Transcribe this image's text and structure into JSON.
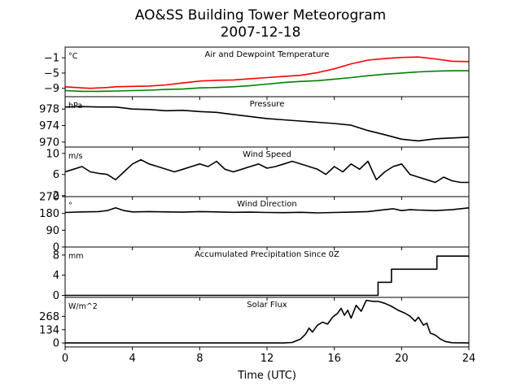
{
  "figure": {
    "title_line1": "AO&SS Building Tower Meteorogram",
    "title_line2": "2007-12-18",
    "xlabel": "Time (UTC)"
  },
  "chart_data": {
    "type": "line",
    "x_ticks": [
      0,
      4,
      8,
      12,
      16,
      20,
      24
    ],
    "x_range": [
      0,
      24
    ],
    "panels": [
      {
        "id": "temperature",
        "title": "Air and Dewpoint Temperature",
        "unit": "°C",
        "ylim": [
          -11.2,
          1.8
        ],
        "yticks": [
          -1,
          -5,
          -9
        ],
        "series": [
          {
            "color": "#ff0000",
            "x": [
              0,
              1,
              1.5,
              2,
              2.5,
              3,
              4,
              5,
              6,
              7,
              8,
              9,
              10,
              11,
              12,
              13,
              14,
              15,
              16,
              17,
              18,
              19,
              20,
              21,
              22,
              23,
              24
            ],
            "y": [
              -8.6,
              -8.9,
              -9.0,
              -8.9,
              -8.8,
              -8.6,
              -8.5,
              -8.4,
              -8.1,
              -7.6,
              -7.1,
              -6.9,
              -6.8,
              -6.5,
              -6.2,
              -5.9,
              -5.6,
              -4.9,
              -3.9,
              -2.6,
              -1.6,
              -1.2,
              -0.9,
              -0.8,
              -1.3,
              -1.9,
              -2.0
            ]
          },
          {
            "color": "#008000",
            "x": [
              0,
              1,
              2,
              3,
              4,
              5,
              6,
              7,
              8,
              9,
              10,
              11,
              12,
              13,
              14,
              15,
              16,
              17,
              18,
              19,
              20,
              21,
              22,
              23,
              24
            ],
            "y": [
              -9.6,
              -9.8,
              -9.8,
              -9.7,
              -9.6,
              -9.5,
              -9.3,
              -9.2,
              -8.9,
              -8.8,
              -8.6,
              -8.3,
              -7.9,
              -7.5,
              -7.2,
              -7.0,
              -6.6,
              -6.2,
              -5.7,
              -5.3,
              -5.0,
              -4.7,
              -4.5,
              -4.4,
              -4.4
            ]
          }
        ]
      },
      {
        "id": "pressure",
        "title": "Pressure",
        "unit": "hPa",
        "ylim": [
          968.8,
          981.0
        ],
        "yticks": [
          978,
          974,
          970
        ],
        "series": [
          {
            "color": "#000000",
            "x": [
              0,
              1,
              2,
              3,
              4,
              5,
              6,
              7,
              8,
              9,
              10,
              11,
              12,
              13,
              14,
              15,
              16,
              17,
              18,
              19,
              20,
              21,
              22,
              23,
              24
            ],
            "y": [
              978.5,
              978.6,
              978.5,
              978.5,
              978.0,
              977.9,
              977.6,
              977.7,
              977.4,
              977.2,
              976.7,
              976.2,
              975.7,
              975.4,
              975.1,
              974.8,
              974.5,
              974.1,
              972.8,
              971.8,
              970.7,
              970.3,
              970.8,
              971.0,
              971.2
            ]
          }
        ]
      },
      {
        "id": "wind_speed",
        "title": "Wind Speed",
        "unit": "m/s",
        "ylim": [
          1.8,
          11.2
        ],
        "yticks": [
          10,
          6,
          2
        ],
        "series": [
          {
            "color": "#000000",
            "x": [
              0,
              0.5,
              1,
              1.5,
              2,
              2.5,
              3,
              3.5,
              4,
              4.5,
              5,
              5.5,
              6,
              6.5,
              7,
              7.5,
              8,
              8.5,
              9,
              9.5,
              10,
              10.5,
              11,
              11.5,
              12,
              12.5,
              13,
              13.5,
              14,
              14.5,
              15,
              15.5,
              16,
              16.5,
              17,
              17.5,
              18,
              18.5,
              19,
              19.5,
              20,
              20.5,
              21,
              21.5,
              22,
              22.5,
              23,
              23.5,
              24
            ],
            "y": [
              6.5,
              7.0,
              7.5,
              6.5,
              6.2,
              6.0,
              5.0,
              6.5,
              8.0,
              8.8,
              8.0,
              7.5,
              7.0,
              6.5,
              7.0,
              7.5,
              8.0,
              7.5,
              8.5,
              7.0,
              6.5,
              7.0,
              7.5,
              8.0,
              7.2,
              7.5,
              8.0,
              8.5,
              8.0,
              7.5,
              7.0,
              6.0,
              7.5,
              6.5,
              8.0,
              7.0,
              8.5,
              5.0,
              6.5,
              7.5,
              8.0,
              6.0,
              5.5,
              5.0,
              4.5,
              5.5,
              4.8,
              4.5,
              4.5
            ]
          }
        ]
      },
      {
        "id": "wind_direction",
        "title": "Wind Direction",
        "unit": "°",
        "ylim": [
          0,
          270
        ],
        "yticks": [
          270,
          180,
          90,
          0
        ],
        "series": [
          {
            "color": "#000000",
            "x": [
              0,
              1,
              2,
              2.5,
              3,
              3.5,
              4,
              5,
              6,
              7,
              8,
              9,
              10,
              11,
              12,
              13,
              14,
              15,
              16,
              17,
              18,
              19,
              19.5,
              20,
              20.5,
              21,
              22,
              23,
              24
            ],
            "y": [
              185,
              188,
              190,
              195,
              210,
              195,
              188,
              190,
              188,
              187,
              190,
              188,
              186,
              187,
              185,
              184,
              186,
              183,
              185,
              187,
              190,
              200,
              205,
              195,
              200,
              198,
              195,
              200,
              210
            ]
          }
        ]
      },
      {
        "id": "precipitation",
        "title": "Accumulated Precipitation Since 0Z",
        "unit": "mm",
        "ylim": [
          -0.4,
          9.6
        ],
        "yticks": [
          8,
          4,
          0
        ],
        "series": [
          {
            "color": "#000000",
            "x": [
              0,
              18.6,
              18.6,
              19.4,
              19.4,
              22.1,
              22.1,
              24
            ],
            "y": [
              0,
              0,
              2.6,
              2.6,
              5.2,
              5.2,
              7.8,
              7.8
            ]
          }
        ]
      },
      {
        "id": "solar_flux",
        "title": "Solar Flux",
        "unit": "W/m^2",
        "ylim": [
          -40,
          460
        ],
        "yticks": [
          268,
          134,
          0
        ],
        "series": [
          {
            "color": "#000000",
            "x": [
              0,
              13,
              13.5,
              14,
              14.3,
              14.5,
              14.7,
              15,
              15.3,
              15.6,
              15.9,
              16.2,
              16.4,
              16.6,
              16.8,
              17,
              17.3,
              17.6,
              17.9,
              18.3,
              18.6,
              19,
              19.4,
              19.8,
              20.2,
              20.5,
              20.8,
              21,
              21.3,
              21.5,
              21.7,
              22,
              22.3,
              22.6,
              23,
              24
            ],
            "y": [
              0,
              0,
              5,
              40,
              90,
              150,
              110,
              180,
              210,
              190,
              260,
              300,
              350,
              280,
              330,
              250,
              380,
              320,
              430,
              420,
              420,
              400,
              370,
              330,
              300,
              270,
              220,
              260,
              180,
              200,
              100,
              80,
              40,
              15,
              3,
              0
            ]
          }
        ]
      }
    ]
  }
}
